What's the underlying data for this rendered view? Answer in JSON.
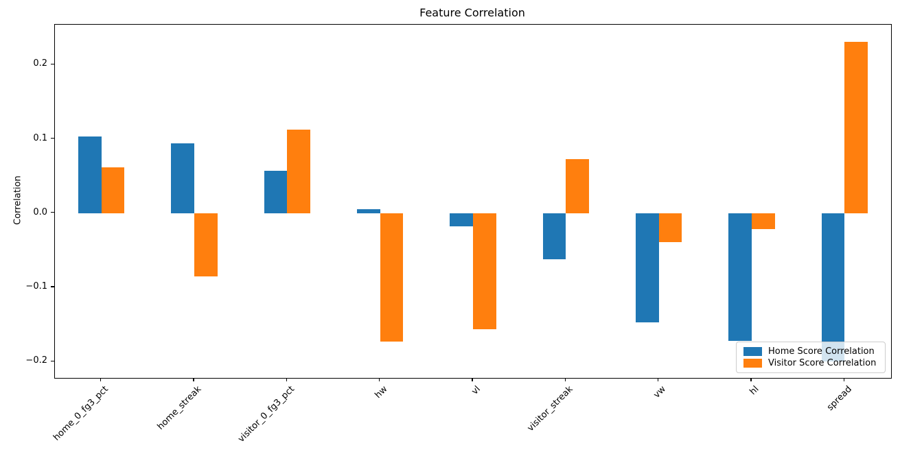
{
  "chart_data": {
    "type": "bar",
    "title": "Feature Correlation",
    "xlabel": "",
    "ylabel": "Correlation",
    "categories": [
      "home_0_fg3_pct",
      "home_streak",
      "visitor_0_fg3_pct",
      "hw",
      "vl",
      "visitor_streak",
      "vw",
      "hl",
      "spread"
    ],
    "series": [
      {
        "name": "Home Score Correlation",
        "color": "#1f77b4",
        "values": [
          0.103,
          0.094,
          0.057,
          0.005,
          -0.018,
          -0.062,
          -0.147,
          -0.172,
          -0.2
        ]
      },
      {
        "name": "Visitor Score Correlation",
        "color": "#ff7f0e",
        "values": [
          0.062,
          -0.085,
          0.113,
          -0.173,
          -0.156,
          0.073,
          -0.039,
          -0.021,
          0.231
        ]
      }
    ],
    "y_ticks": [
      {
        "value": 0.2,
        "label": "0.2"
      },
      {
        "value": 0.1,
        "label": "0.1"
      },
      {
        "value": 0.0,
        "label": "0.0"
      },
      {
        "value": -0.1,
        "label": "−0.1"
      },
      {
        "value": -0.2,
        "label": "−0.2"
      }
    ],
    "ylim": [
      -0.222,
      0.254
    ],
    "xlim": [
      -0.5,
      8.5
    ],
    "bar_width": 0.25,
    "grid": false,
    "legend_position": "lower right",
    "axis_color": "#000000"
  }
}
